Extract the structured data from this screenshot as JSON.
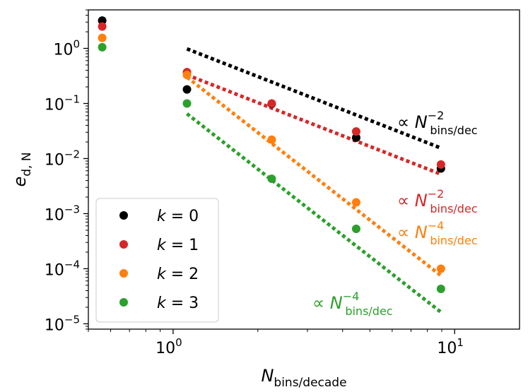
{
  "chart_data": {
    "type": "scatter",
    "x_scale": "log",
    "y_scale": "log",
    "xlim": [
      0.5,
      17
    ],
    "ylim": [
      8e-06,
      5
    ],
    "x_ticks": [
      {
        "value": 1,
        "base": "10",
        "exp": "0"
      },
      {
        "value": 10,
        "base": "10",
        "exp": "1"
      }
    ],
    "y_ticks": [
      {
        "value": 1,
        "base": "10",
        "exp": "0"
      },
      {
        "value": 0.1,
        "base": "10",
        "exp": "−1"
      },
      {
        "value": 0.01,
        "base": "10",
        "exp": "−2"
      },
      {
        "value": 0.001,
        "base": "10",
        "exp": "−3"
      },
      {
        "value": 0.0001,
        "base": "10",
        "exp": "−4"
      },
      {
        "value": 1e-05,
        "base": "10",
        "exp": "−5"
      }
    ],
    "xlabel": {
      "main": "N",
      "sub": "bins/decade"
    },
    "ylabel": {
      "main": "e",
      "sub": "d, N"
    },
    "series": [
      {
        "name": "k = 0",
        "legend_var": "k",
        "legend_eq": "= 0",
        "color": "#000000",
        "x": [
          0.56,
          1.12,
          2.24,
          4.47,
          8.94
        ],
        "y": [
          3.2,
          0.18,
          0.098,
          0.024,
          0.0066
        ]
      },
      {
        "name": "k = 1",
        "legend_var": "k",
        "legend_eq": "= 1",
        "color": "#d62728",
        "x": [
          0.56,
          1.12,
          2.24,
          4.47,
          8.94
        ],
        "y": [
          2.5,
          0.37,
          0.1,
          0.031,
          0.0078
        ]
      },
      {
        "name": "k = 2",
        "legend_var": "k",
        "legend_eq": "= 2",
        "color": "#ff7f0e",
        "x": [
          0.56,
          1.12,
          2.24,
          4.47,
          8.94
        ],
        "y": [
          1.55,
          0.33,
          0.022,
          0.0016,
          0.0001
        ]
      },
      {
        "name": "k = 3",
        "legend_var": "k",
        "legend_eq": "= 3",
        "color": "#2ca02c",
        "x": [
          0.56,
          1.12,
          2.24,
          4.47,
          8.94
        ],
        "y": [
          1.05,
          0.1,
          0.0043,
          0.00053,
          4.3e-05
        ]
      }
    ],
    "reference_lines": [
      {
        "color": "#000000",
        "x": [
          1.12,
          8.94
        ],
        "y": [
          0.98,
          0.0155
        ]
      },
      {
        "color": "#d62728",
        "x": [
          1.12,
          8.94
        ],
        "y": [
          0.33,
          0.0052
        ]
      },
      {
        "color": "#ff7f0e",
        "x": [
          1.12,
          8.94
        ],
        "y": [
          0.3,
          7.5e-05
        ]
      },
      {
        "color": "#2ca02c",
        "x": [
          1.12,
          8.94
        ],
        "y": [
          0.065,
          1.63e-05
        ]
      }
    ],
    "annotations": [
      {
        "prefix": "∝ ",
        "var": "N",
        "sub": "bins/dec",
        "sup": "−2",
        "color": "#000000"
      },
      {
        "prefix": "∝ ",
        "var": "N",
        "sub": "bins/dec",
        "sup": "−2",
        "color": "#d62728"
      },
      {
        "prefix": "∝ ",
        "var": "N",
        "sub": "bins/dec",
        "sup": "−4",
        "color": "#ff7f0e"
      },
      {
        "prefix": "∝ ",
        "var": "N",
        "sub": "bins/dec",
        "sup": "−4",
        "color": "#2ca02c"
      }
    ],
    "legend_position": "lower-left"
  }
}
